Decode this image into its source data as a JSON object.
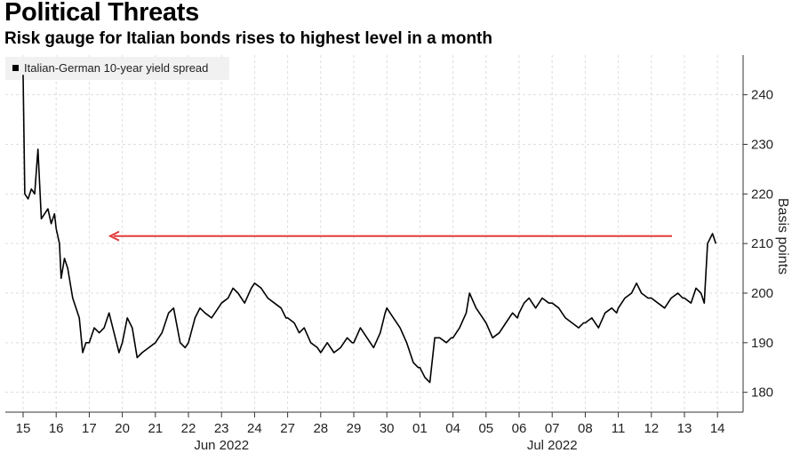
{
  "header": {
    "title": "Political Threats",
    "subtitle": "Risk gauge for Italian bonds rises to highest level in a month"
  },
  "colors": {
    "line": "#000000",
    "arrow": "#e23b3b",
    "grid": "#dddddd",
    "legend_bg": "#f1f1f1"
  },
  "chart_data": {
    "type": "line",
    "title": "Political Threats",
    "subtitle": "Risk gauge for Italian bonds rises to highest level in a month",
    "ylabel": "Basis points",
    "ylim": [
      176,
      248
    ],
    "yticks": [
      180,
      190,
      200,
      210,
      220,
      230,
      240
    ],
    "x_tick_labels": [
      "15",
      "16",
      "17",
      "20",
      "21",
      "22",
      "23",
      "24",
      "27",
      "28",
      "29",
      "30",
      "01",
      "04",
      "05",
      "06",
      "07",
      "08",
      "11",
      "12",
      "13",
      "14"
    ],
    "x_group_labels": [
      "Jun 2022",
      "Jul 2022"
    ],
    "legend": [
      "Italian-German 10-year yield spread"
    ],
    "legend_position": "top-left",
    "grid": true,
    "annotation": "arrow pointing left at level ~211.5 bp",
    "series": [
      {
        "name": "Italian-German 10-year yield spread",
        "points": [
          [
            0,
            244
          ],
          [
            0.05,
            220
          ],
          [
            0.15,
            219
          ],
          [
            0.25,
            221
          ],
          [
            0.35,
            220
          ],
          [
            0.45,
            229
          ],
          [
            0.55,
            215
          ],
          [
            0.65,
            216
          ],
          [
            0.75,
            217
          ],
          [
            0.85,
            214
          ],
          [
            0.95,
            216
          ],
          [
            1.0,
            213
          ],
          [
            1.1,
            210
          ],
          [
            1.15,
            203
          ],
          [
            1.25,
            207
          ],
          [
            1.35,
            205
          ],
          [
            1.45,
            201
          ],
          [
            1.5,
            199
          ],
          [
            1.6,
            197
          ],
          [
            1.7,
            195
          ],
          [
            1.8,
            188
          ],
          [
            1.9,
            190
          ],
          [
            2.0,
            190
          ],
          [
            2.15,
            193
          ],
          [
            2.3,
            192
          ],
          [
            2.45,
            193
          ],
          [
            2.6,
            196
          ],
          [
            2.75,
            192
          ],
          [
            2.9,
            188
          ],
          [
            3.0,
            190
          ],
          [
            3.15,
            195
          ],
          [
            3.3,
            193
          ],
          [
            3.45,
            187
          ],
          [
            3.6,
            188
          ],
          [
            3.8,
            189
          ],
          [
            4.0,
            190
          ],
          [
            4.2,
            192
          ],
          [
            4.4,
            196
          ],
          [
            4.55,
            197
          ],
          [
            4.75,
            190
          ],
          [
            4.9,
            189
          ],
          [
            5.0,
            190
          ],
          [
            5.2,
            195
          ],
          [
            5.35,
            197
          ],
          [
            5.5,
            196
          ],
          [
            5.7,
            195
          ],
          [
            5.9,
            197
          ],
          [
            6.0,
            198
          ],
          [
            6.2,
            199
          ],
          [
            6.35,
            201
          ],
          [
            6.5,
            200
          ],
          [
            6.7,
            198
          ],
          [
            6.9,
            201
          ],
          [
            7.0,
            202
          ],
          [
            7.2,
            201
          ],
          [
            7.4,
            199
          ],
          [
            7.6,
            198
          ],
          [
            7.8,
            197
          ],
          [
            7.95,
            195
          ],
          [
            8.0,
            195
          ],
          [
            8.2,
            194
          ],
          [
            8.35,
            192
          ],
          [
            8.5,
            193
          ],
          [
            8.7,
            190
          ],
          [
            8.9,
            189
          ],
          [
            9.0,
            188
          ],
          [
            9.2,
            190
          ],
          [
            9.4,
            188
          ],
          [
            9.6,
            189
          ],
          [
            9.8,
            191
          ],
          [
            9.95,
            190
          ],
          [
            10.0,
            190
          ],
          [
            10.2,
            193
          ],
          [
            10.4,
            191
          ],
          [
            10.6,
            189
          ],
          [
            10.8,
            192
          ],
          [
            10.95,
            196
          ],
          [
            11.0,
            197
          ],
          [
            11.2,
            195
          ],
          [
            11.4,
            193
          ],
          [
            11.6,
            190
          ],
          [
            11.8,
            186
          ],
          [
            11.95,
            185
          ],
          [
            12.0,
            185
          ],
          [
            12.15,
            183
          ],
          [
            12.3,
            182
          ],
          [
            12.45,
            191
          ],
          [
            12.6,
            191
          ],
          [
            12.8,
            190
          ],
          [
            12.95,
            191
          ],
          [
            13.0,
            191
          ],
          [
            13.2,
            193
          ],
          [
            13.4,
            196
          ],
          [
            13.5,
            200
          ],
          [
            13.7,
            197
          ],
          [
            13.9,
            195
          ],
          [
            14.0,
            194
          ],
          [
            14.2,
            191
          ],
          [
            14.4,
            192
          ],
          [
            14.6,
            194
          ],
          [
            14.8,
            196
          ],
          [
            14.95,
            195
          ],
          [
            15.0,
            196
          ],
          [
            15.15,
            198
          ],
          [
            15.3,
            199
          ],
          [
            15.5,
            197
          ],
          [
            15.7,
            199
          ],
          [
            15.9,
            198
          ],
          [
            16.0,
            198
          ],
          [
            16.2,
            197
          ],
          [
            16.4,
            195
          ],
          [
            16.6,
            194
          ],
          [
            16.8,
            193
          ],
          [
            16.95,
            194
          ],
          [
            17.0,
            194
          ],
          [
            17.2,
            195
          ],
          [
            17.4,
            193
          ],
          [
            17.6,
            196
          ],
          [
            17.8,
            197
          ],
          [
            17.95,
            196
          ],
          [
            18.0,
            197
          ],
          [
            18.2,
            199
          ],
          [
            18.4,
            200
          ],
          [
            18.55,
            202
          ],
          [
            18.7,
            200
          ],
          [
            18.9,
            199
          ],
          [
            19.0,
            199
          ],
          [
            19.2,
            198
          ],
          [
            19.4,
            197
          ],
          [
            19.6,
            199
          ],
          [
            19.8,
            200
          ],
          [
            19.95,
            199
          ],
          [
            20.0,
            199
          ],
          [
            20.2,
            198
          ],
          [
            20.35,
            201
          ],
          [
            20.5,
            200
          ],
          [
            20.6,
            198
          ],
          [
            20.7,
            210
          ],
          [
            20.85,
            212
          ],
          [
            20.95,
            210
          ]
        ]
      }
    ]
  }
}
